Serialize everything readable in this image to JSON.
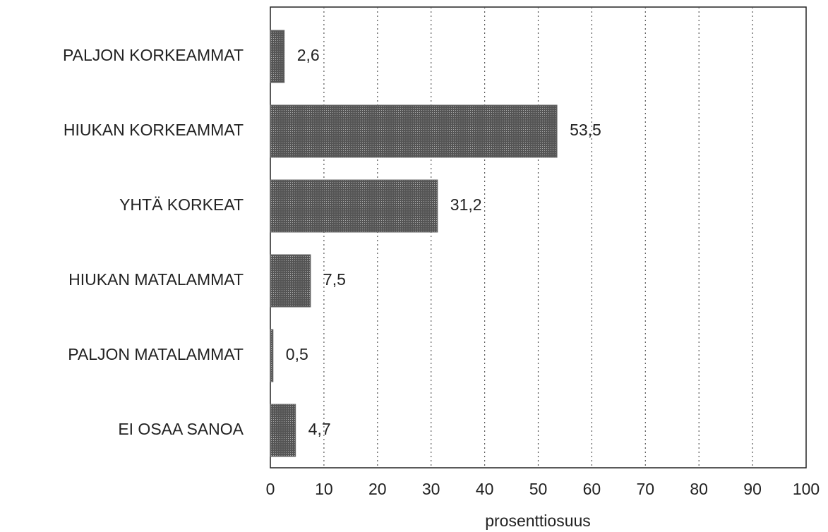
{
  "chart_data": {
    "type": "bar",
    "orientation": "horizontal",
    "categories": [
      "PALJON KORKEAMMAT",
      "HIUKAN KORKEAMMAT",
      "YHTÄ KORKEAT",
      "HIUKAN MATALAMMAT",
      "PALJON MATALAMMAT",
      "EI OSAA SANOA"
    ],
    "values": [
      2.6,
      53.5,
      31.2,
      7.5,
      0.5,
      4.7
    ],
    "value_labels": [
      "2,6",
      "53,5",
      "31,2",
      "7,5",
      "0,5",
      "4,7"
    ],
    "color": "#6a6a6a",
    "xlabel": "prosenttiosuus",
    "xlim": [
      0,
      100
    ],
    "xticks": [
      0,
      10,
      20,
      30,
      40,
      50,
      60,
      70,
      80,
      90,
      100
    ],
    "grid": true
  }
}
